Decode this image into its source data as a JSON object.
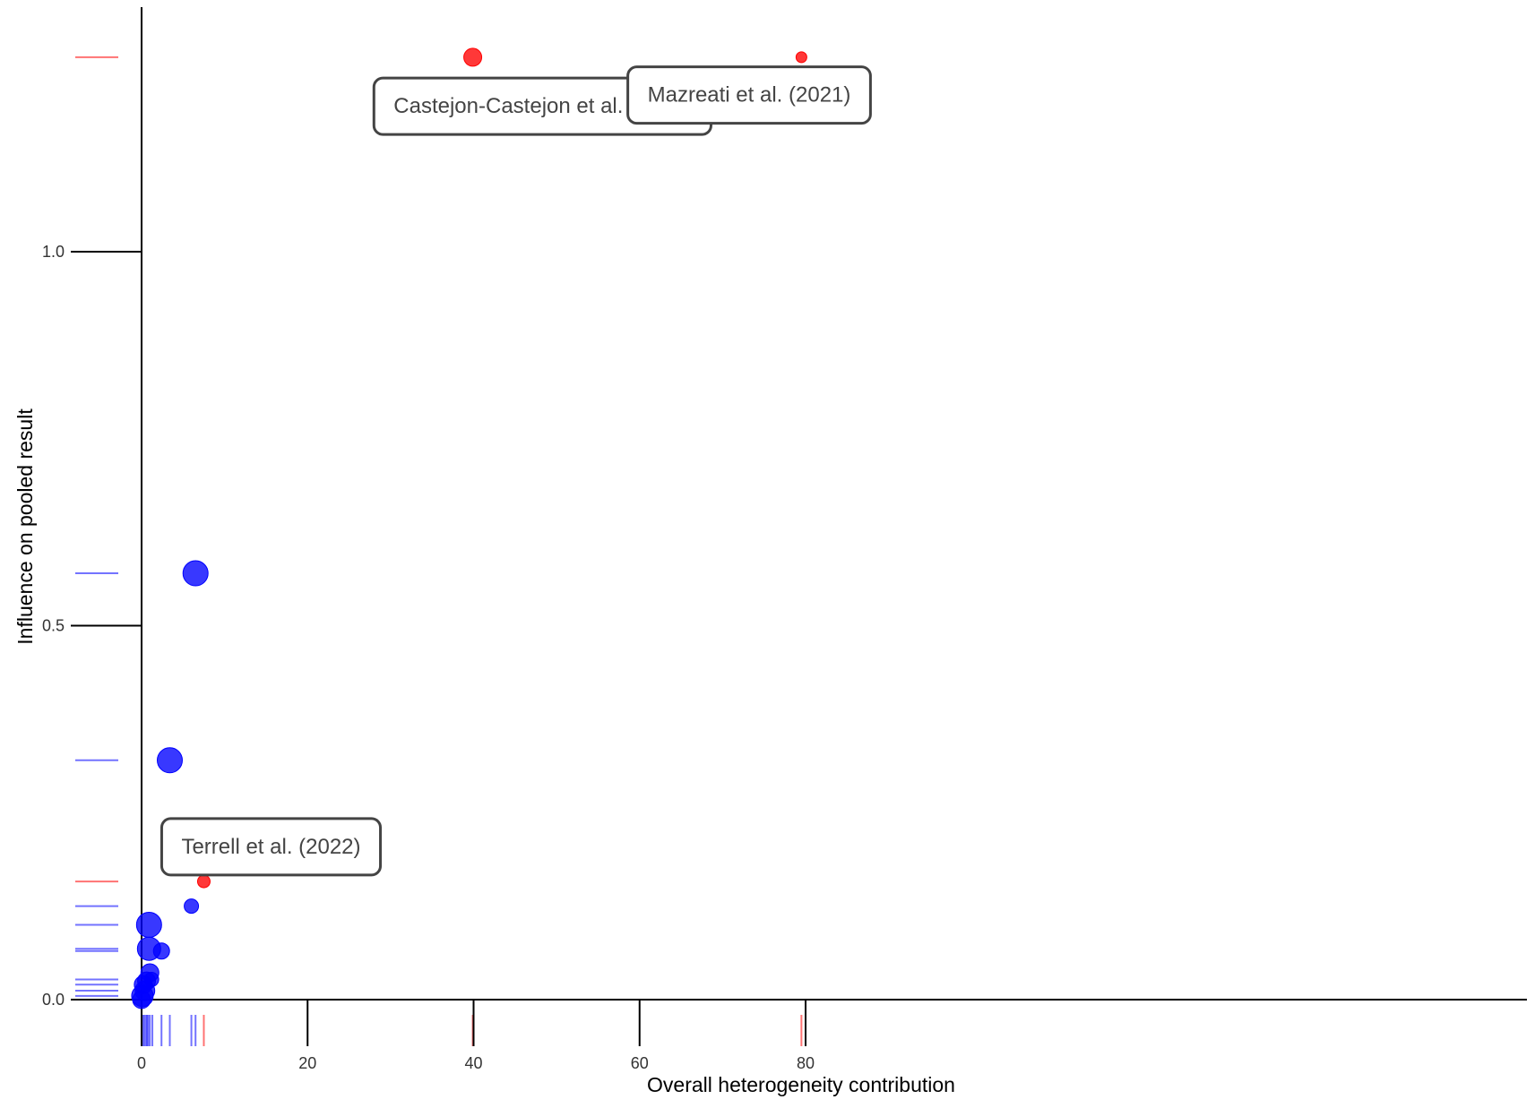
{
  "chart_data": {
    "type": "scatter",
    "title": "",
    "xlabel": "Overall heterogeneity contribution",
    "ylabel": "Influence on pooled result",
    "xlim": [
      -10,
      83
    ],
    "ylim": [
      -0.07,
      1.33
    ],
    "x_ticks": [
      0,
      20,
      40,
      60,
      80
    ],
    "y_ticks": [
      0.0,
      0.5,
      1.0
    ],
    "x_tick_labels": [
      "0",
      "20",
      "40",
      "60",
      "80"
    ],
    "y_tick_labels": [
      "0.0",
      "0.5",
      "1.0"
    ],
    "grid": false,
    "rug": true,
    "colors": {
      "normal": "#0000ff",
      "outlier": "#ff0000"
    },
    "series": [
      {
        "group": "normal",
        "color": "#0000ff",
        "points": [
          {
            "x": 6.5,
            "y": 0.57,
            "size": 14
          },
          {
            "x": 3.4,
            "y": 0.32,
            "size": 14
          },
          {
            "x": 6.0,
            "y": 0.125,
            "size": 8
          },
          {
            "x": 0.9,
            "y": 0.1,
            "size": 14
          },
          {
            "x": 0.9,
            "y": 0.068,
            "size": 13
          },
          {
            "x": 2.4,
            "y": 0.065,
            "size": 9
          },
          {
            "x": 1.0,
            "y": 0.036,
            "size": 10
          },
          {
            "x": 1.2,
            "y": 0.027,
            "size": 8
          },
          {
            "x": 0.6,
            "y": 0.025,
            "size": 10
          },
          {
            "x": 0.2,
            "y": 0.02,
            "size": 10
          },
          {
            "x": 0.4,
            "y": 0.012,
            "size": 11
          },
          {
            "x": 0.1,
            "y": 0.005,
            "size": 12
          },
          {
            "x": 0.0,
            "y": 0.0,
            "size": 10
          }
        ]
      },
      {
        "group": "outlier",
        "color": "#ff0000",
        "points": [
          {
            "x": 39.9,
            "y": 1.26,
            "size": 10,
            "label": "Castejon-Castejon et al. (2022)"
          },
          {
            "x": 79.5,
            "y": 1.26,
            "size": 6,
            "label": "Mazreati et al. (2021)"
          },
          {
            "x": 7.5,
            "y": 0.158,
            "size": 7,
            "label": "Terrell et al. (2022)"
          }
        ]
      }
    ],
    "annotations": [
      {
        "text": "Castejon-Castejon et al. (2022)",
        "x": 48.3,
        "y": 1.195
      },
      {
        "text": "Mazreati et al. (2021)",
        "x": 73.2,
        "y": 1.21
      },
      {
        "text": "Terrell et al. (2022)",
        "x": 15.6,
        "y": 0.205
      }
    ],
    "rug_x": [
      {
        "x": 0.0,
        "c": "normal"
      },
      {
        "x": 0.15,
        "c": "normal"
      },
      {
        "x": 0.3,
        "c": "normal"
      },
      {
        "x": 0.5,
        "c": "normal"
      },
      {
        "x": 0.65,
        "c": "normal"
      },
      {
        "x": 0.8,
        "c": "normal"
      },
      {
        "x": 1.0,
        "c": "normal"
      },
      {
        "x": 1.3,
        "c": "normal"
      },
      {
        "x": 2.4,
        "c": "normal"
      },
      {
        "x": 3.4,
        "c": "normal"
      },
      {
        "x": 6.0,
        "c": "normal"
      },
      {
        "x": 6.5,
        "c": "normal"
      },
      {
        "x": 7.5,
        "c": "outlier"
      },
      {
        "x": 39.9,
        "c": "outlier"
      },
      {
        "x": 79.5,
        "c": "outlier"
      }
    ],
    "rug_y": [
      {
        "y": 1.26,
        "c": "outlier"
      },
      {
        "y": 0.57,
        "c": "normal"
      },
      {
        "y": 0.32,
        "c": "normal"
      },
      {
        "y": 0.158,
        "c": "outlier"
      },
      {
        "y": 0.125,
        "c": "normal"
      },
      {
        "y": 0.1,
        "c": "normal"
      },
      {
        "y": 0.068,
        "c": "normal"
      },
      {
        "y": 0.065,
        "c": "normal"
      },
      {
        "y": 0.027,
        "c": "normal"
      },
      {
        "y": 0.02,
        "c": "normal"
      },
      {
        "y": 0.012,
        "c": "normal"
      },
      {
        "y": 0.005,
        "c": "normal"
      },
      {
        "y": 0.0,
        "c": "normal"
      }
    ]
  }
}
